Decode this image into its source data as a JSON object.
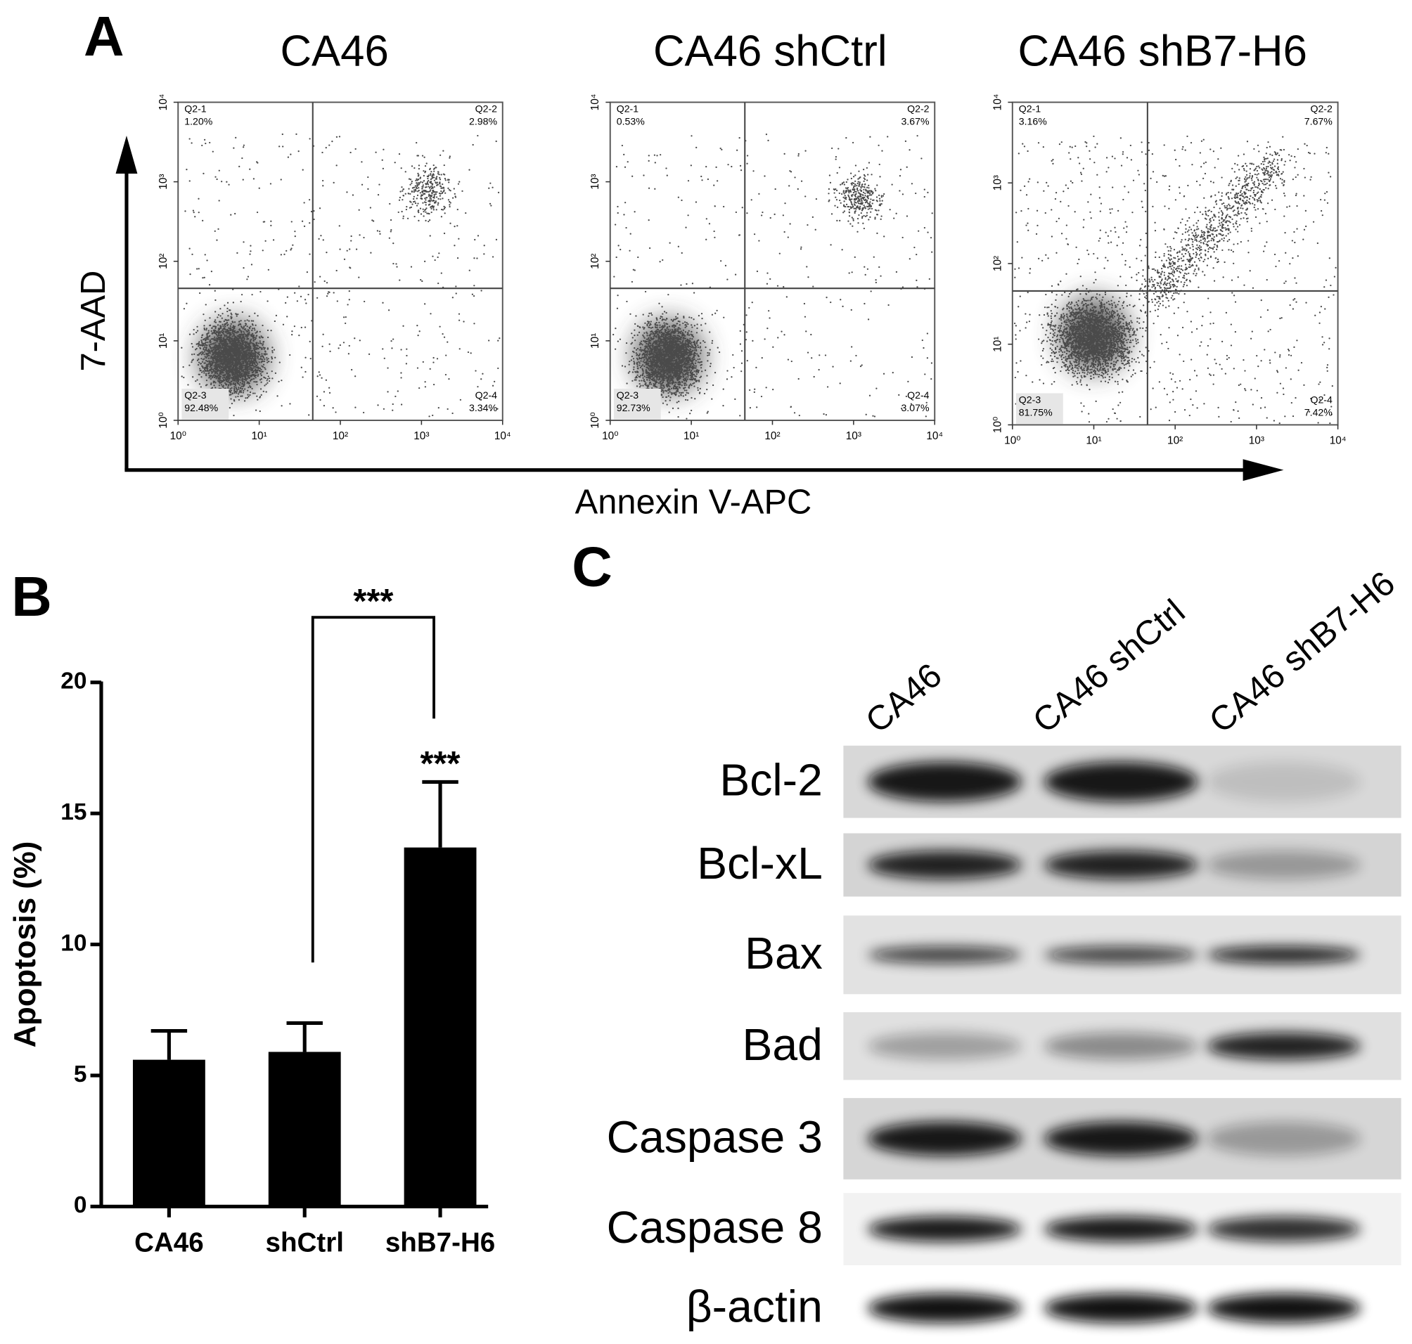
{
  "panel_labels": [
    "A",
    "B",
    "C"
  ],
  "flow_axis_labels": {
    "x": "Annexin V-APC",
    "y": "7-AAD"
  },
  "chart_data": [
    {
      "type": "flow",
      "title": "CA46",
      "xscale": "log",
      "yscale": "log",
      "xlim": [
        1,
        10000
      ],
      "ylim": [
        1,
        10000
      ],
      "xticks": [
        {
          "value": 1,
          "label": "10⁰"
        },
        {
          "value": 10,
          "label": "10¹"
        },
        {
          "value": 100,
          "label": "10²"
        },
        {
          "value": 1000,
          "label": "10³"
        },
        {
          "value": 10000,
          "label": "10⁴"
        }
      ],
      "yticks": [
        {
          "value": 1,
          "label": "10⁰"
        },
        {
          "value": 10,
          "label": "10¹"
        },
        {
          "value": 100,
          "label": "10²"
        },
        {
          "value": 1000,
          "label": "10³"
        },
        {
          "value": 10000,
          "label": "10⁴"
        }
      ],
      "quadrants": [
        "Q2-1",
        "Q2-2",
        "Q2-3",
        "Q2-4"
      ],
      "values": [
        1.2,
        2.98,
        92.48,
        3.34
      ],
      "value_labels": [
        "1.20%",
        "2.98%",
        "92.48%",
        "3.34%"
      ]
    },
    {
      "type": "flow",
      "title": "CA46 shCtrl",
      "xscale": "log",
      "yscale": "log",
      "xlim": [
        1,
        10000
      ],
      "ylim": [
        1,
        10000
      ],
      "xticks": [
        {
          "value": 1,
          "label": "10⁰"
        },
        {
          "value": 10,
          "label": "10¹"
        },
        {
          "value": 100,
          "label": "10²"
        },
        {
          "value": 1000,
          "label": "10³"
        },
        {
          "value": 10000,
          "label": "10⁴"
        }
      ],
      "yticks": [
        {
          "value": 1,
          "label": "10⁰"
        },
        {
          "value": 10,
          "label": "10¹"
        },
        {
          "value": 100,
          "label": "10²"
        },
        {
          "value": 1000,
          "label": "10³"
        },
        {
          "value": 10000,
          "label": "10⁴"
        }
      ],
      "quadrants": [
        "Q2-1",
        "Q2-2",
        "Q2-3",
        "Q2-4"
      ],
      "values": [
        0.53,
        3.67,
        92.73,
        3.07
      ],
      "value_labels": [
        "0.53%",
        "3.67%",
        "92.73%",
        "3.07%"
      ]
    },
    {
      "type": "flow",
      "title": "CA46 shB7-H6",
      "xscale": "log",
      "yscale": "log",
      "xlim": [
        1,
        10000
      ],
      "ylim": [
        1,
        10000
      ],
      "xticks": [
        {
          "value": 1,
          "label": "10⁰"
        },
        {
          "value": 10,
          "label": "10¹"
        },
        {
          "value": 100,
          "label": "10²"
        },
        {
          "value": 1000,
          "label": "10³"
        },
        {
          "value": 10000,
          "label": "10⁴"
        }
      ],
      "yticks": [
        {
          "value": 1,
          "label": "10⁰"
        },
        {
          "value": 10,
          "label": "10¹"
        },
        {
          "value": 100,
          "label": "10²"
        },
        {
          "value": 1000,
          "label": "10³"
        },
        {
          "value": 10000,
          "label": "10⁴"
        }
      ],
      "quadrants": [
        "Q2-1",
        "Q2-2",
        "Q2-3",
        "Q2-4"
      ],
      "values": [
        3.16,
        7.67,
        81.75,
        7.42
      ],
      "value_labels": [
        "3.16%",
        "7.67%",
        "81.75%",
        "7.42%"
      ]
    },
    {
      "type": "bar",
      "ylabel": "Apoptosis (%)",
      "categories": [
        "CA46",
        "shCtrl",
        "shB7-H6"
      ],
      "values": [
        5.6,
        5.9,
        13.7
      ],
      "errors": [
        1.1,
        1.1,
        2.5
      ],
      "color": "#000000",
      "ylim": [
        0,
        20
      ],
      "yticks": [
        0,
        5,
        10,
        15,
        20
      ],
      "annotations": [
        "***",
        "***"
      ]
    }
  ],
  "western_blot": {
    "lanes": [
      "CA46",
      "CA46 shCtrl",
      "CA46 shB7-H6"
    ],
    "proteins": [
      "Bcl-2",
      "Bcl-xL",
      "Bax",
      "Bad",
      "Caspase 3",
      "Caspase 8",
      "β-actin"
    ]
  }
}
